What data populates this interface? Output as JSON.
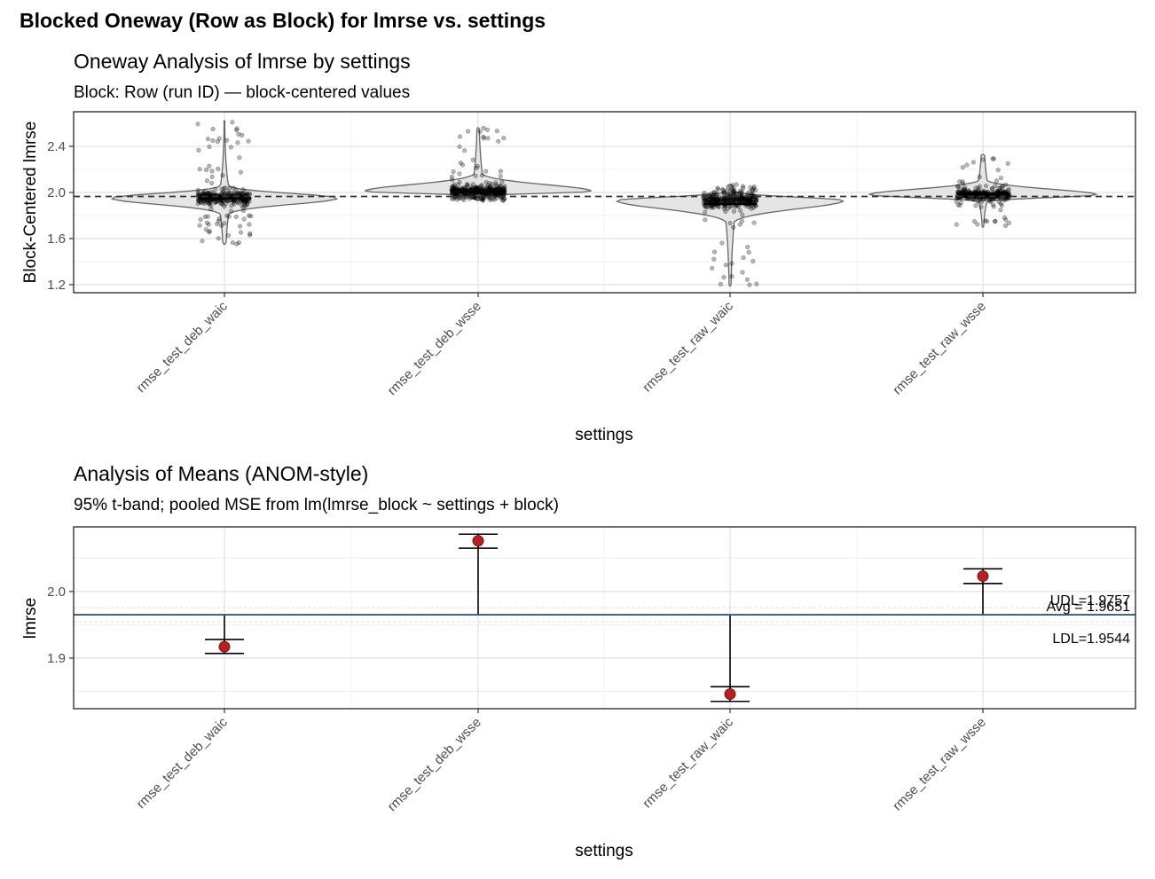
{
  "title": "Blocked Oneway (Row as Block) for lmrse vs. settings",
  "chart_data": [
    {
      "type": "violin",
      "title": "Oneway Analysis of lmrse by settings",
      "subtitle": "Block: Row (run ID) — block-centered values",
      "xlabel": "settings",
      "ylabel": "Block-Centered lmrse",
      "categories": [
        "rmse_test_deb_waic",
        "rmse_test_deb_wsse",
        "rmse_test_raw_waic",
        "rmse_test_raw_wsse"
      ],
      "ylim": [
        1.13,
        2.7
      ],
      "yticks": [
        1.2,
        1.6,
        2.0,
        2.4
      ],
      "grand_mean": 1.9651,
      "series": [
        {
          "median": 1.95,
          "min": 1.55,
          "max": 2.62,
          "mode": 1.95
        },
        {
          "median": 2.01,
          "min": 1.93,
          "max": 2.56,
          "mode": 2.01
        },
        {
          "median": 1.9,
          "min": 1.19,
          "max": 2.07,
          "mode": 1.93
        },
        {
          "median": 1.99,
          "min": 1.7,
          "max": 2.33,
          "mode": 1.98
        }
      ],
      "grid": true
    },
    {
      "type": "anom",
      "title": "Analysis of Means (ANOM-style)",
      "subtitle": "95% t-band; pooled MSE from lm(lmrse_block ~ settings + block)",
      "xlabel": "settings",
      "ylabel": "lmrse",
      "categories": [
        "rmse_test_deb_waic",
        "rmse_test_deb_wsse",
        "rmse_test_raw_waic",
        "rmse_test_raw_wsse"
      ],
      "means": [
        1.917,
        2.076,
        1.846,
        2.023
      ],
      "ci_lower": [
        1.907,
        2.065,
        1.835,
        2.012
      ],
      "ci_upper": [
        1.928,
        2.086,
        1.857,
        2.034
      ],
      "center": 1.9651,
      "udl": 1.9757,
      "ldl": 1.9544,
      "ylim": [
        1.824,
        2.097
      ],
      "yticks": [
        1.9,
        2.0
      ],
      "center_label": "Avg = 1.9651",
      "udl_label": "UDL=1.9757",
      "ldl_label": "LDL=1.9544",
      "colors": {
        "point": "#b22222",
        "center_line": "#3b5870"
      },
      "grid": true
    }
  ]
}
